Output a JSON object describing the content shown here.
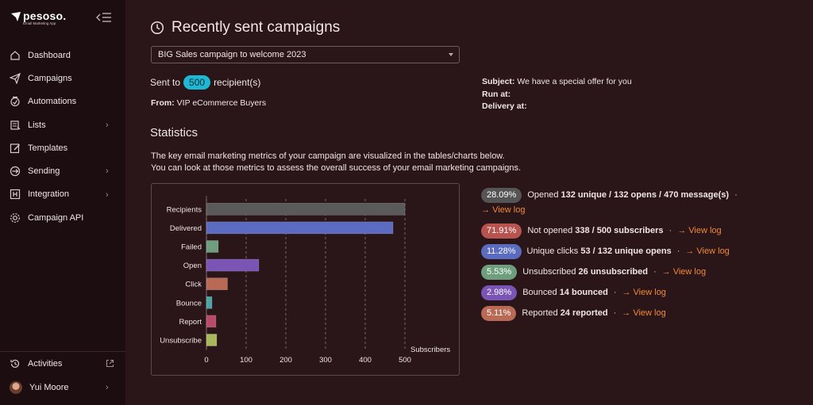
{
  "app": {
    "name": "pesoso.",
    "tagline": "Email Marketing App"
  },
  "nav": [
    {
      "label": "Dashboard",
      "icon": "home-icon",
      "chevron": false
    },
    {
      "label": "Campaigns",
      "icon": "paper-plane-icon",
      "chevron": false
    },
    {
      "label": "Automations",
      "icon": "robot-icon",
      "chevron": false
    },
    {
      "label": "Lists",
      "icon": "list-icon",
      "chevron": true
    },
    {
      "label": "Templates",
      "icon": "edit-template-icon",
      "chevron": false
    },
    {
      "label": "Sending",
      "icon": "sending-icon",
      "chevron": true
    },
    {
      "label": "Integration",
      "icon": "integration-icon",
      "chevron": true
    },
    {
      "label": "Campaign API",
      "icon": "api-gear-icon",
      "chevron": false
    }
  ],
  "bottom": {
    "activities": "Activities",
    "user": "Yui Moore"
  },
  "page": {
    "title": "Recently sent campaigns",
    "campaign_selected": "BIG Sales campaign to welcome 2023",
    "sent_to_prefix": "Sent to",
    "recipients": "500",
    "sent_to_suffix": "recipient(s)",
    "from_label": "From:",
    "from_value": "VIP eCommerce Buyers",
    "subject_label": "Subject:",
    "subject_value": "We have a special offer for you",
    "run_at_label": "Run at:",
    "delivery_at_label": "Delivery at:",
    "stats_heading": "Statistics",
    "desc_line1": "The key email marketing metrics of your campaign are visualized in the tables/charts below.",
    "desc_line2": "You can look at those metrics to assess the overall success of your email marketing campaigns."
  },
  "metrics": [
    {
      "pct": "28.09%",
      "color": "#555555",
      "label": "Opened",
      "bold": "132 unique / 132 opens / 470 message(s)",
      "link": "View log"
    },
    {
      "pct": "71.91%",
      "color": "#b85450",
      "label": "Not opened",
      "bold": "338 / 500 subscribers",
      "link": "View log"
    },
    {
      "pct": "11.28%",
      "color": "#5b6bc0",
      "label": "Unique clicks",
      "bold": "53 / 132 unique opens",
      "link": "View log"
    },
    {
      "pct": "5.53%",
      "color": "#6e9e7e",
      "label": "Unsubscribed",
      "bold": "26 unsubscribed",
      "link": "View log"
    },
    {
      "pct": "2.98%",
      "color": "#7a55b5",
      "label": "Bounced",
      "bold": "14 bounced",
      "link": "View log"
    },
    {
      "pct": "5.11%",
      "color": "#b86a55",
      "label": "Reported",
      "bold": "24 reported",
      "link": "View log"
    }
  ],
  "chart_data": {
    "type": "bar",
    "orientation": "horizontal",
    "categories": [
      "Recipients",
      "Delivered",
      "Failed",
      "Open",
      "Click",
      "Bounce",
      "Report",
      "Unsubscribe"
    ],
    "values": [
      500,
      470,
      30,
      132,
      53,
      14,
      24,
      26
    ],
    "colors": [
      "#5a5a5a",
      "#5b6bc0",
      "#6e9e7e",
      "#7a55b5",
      "#b86a55",
      "#4aa5a5",
      "#b84a6a",
      "#a8b85a"
    ],
    "xlabel": "Subscribers",
    "xticks": [
      "0",
      "100",
      "200",
      "300",
      "400",
      "500"
    ],
    "xlim": [
      0,
      500
    ],
    "grid": "vertical dashed"
  }
}
